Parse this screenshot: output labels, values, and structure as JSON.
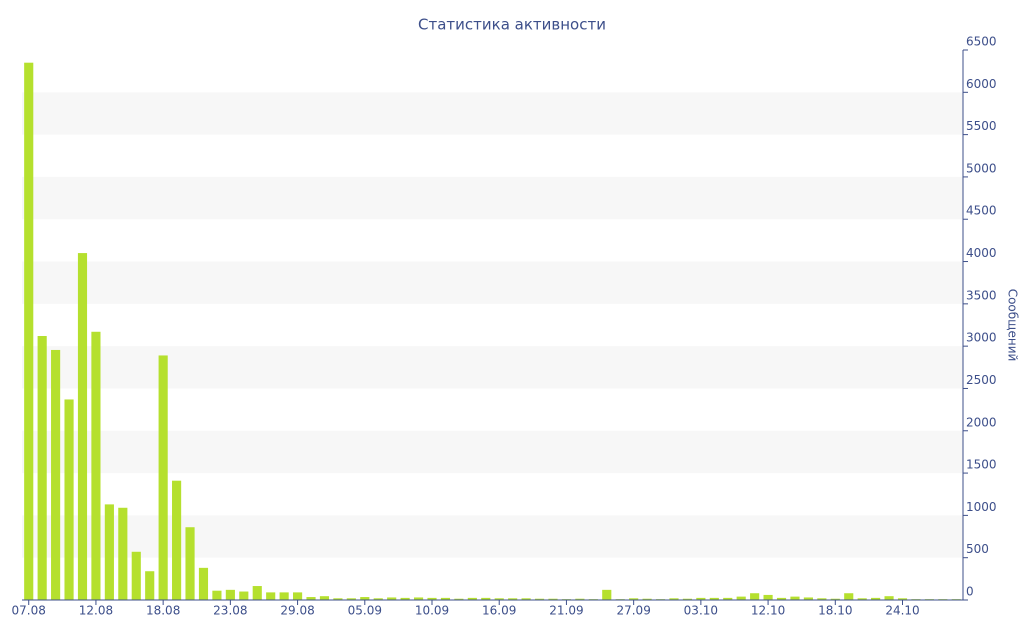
{
  "chart_data": {
    "type": "bar",
    "title": "Статистика активности",
    "y_label": "Сообщений",
    "categories": [
      "07.08",
      null,
      null,
      null,
      null,
      "12.08",
      null,
      null,
      null,
      null,
      "18.08",
      null,
      null,
      null,
      null,
      "23.08",
      null,
      null,
      null,
      null,
      "29.08",
      null,
      null,
      null,
      null,
      "05.09",
      null,
      null,
      null,
      null,
      "10.09",
      null,
      null,
      null,
      null,
      "16.09",
      null,
      null,
      null,
      null,
      "21.09",
      null,
      null,
      null,
      null,
      "27.09",
      null,
      null,
      null,
      null,
      "03.10",
      null,
      null,
      null,
      null,
      "12.10",
      null,
      null,
      null,
      null,
      "18.10",
      null,
      null,
      null,
      null,
      "24.10",
      null,
      null,
      null,
      null
    ],
    "values": [
      6350,
      3120,
      2955,
      2370,
      4100,
      3170,
      1130,
      1090,
      570,
      340,
      2890,
      1410,
      860,
      380,
      110,
      120,
      100,
      165,
      90,
      90,
      90,
      35,
      45,
      20,
      20,
      35,
      20,
      30,
      25,
      30,
      25,
      25,
      15,
      25,
      25,
      20,
      20,
      20,
      15,
      15,
      10,
      15,
      10,
      120,
      10,
      20,
      15,
      10,
      20,
      15,
      25,
      25,
      25,
      40,
      80,
      60,
      25,
      40,
      30,
      20,
      15,
      80,
      20,
      25,
      45,
      20,
      10,
      10,
      10,
      10
    ],
    "color": "#b5e02e",
    "ylim": [
      0,
      6500
    ],
    "yticks": [
      0,
      500,
      1000,
      1500,
      2000,
      2500,
      3000,
      3500,
      4000,
      4500,
      5000,
      5500,
      6000,
      6500
    ],
    "y_axis_side": "right",
    "grid_bands": true
  }
}
